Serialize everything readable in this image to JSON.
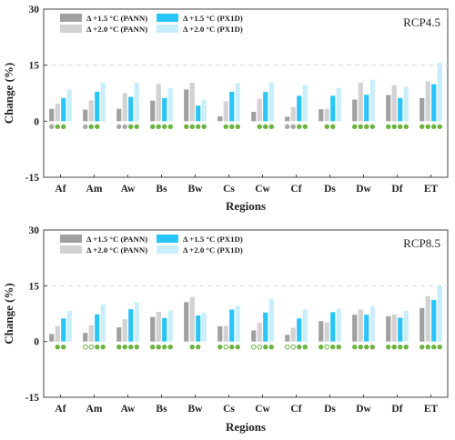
{
  "chart_data": [
    {
      "type": "bar",
      "scenario": "RCP4.5",
      "xlabel": "Regions",
      "ylabel": "Change (%)",
      "ylim": [
        -15,
        30
      ],
      "yticks": [
        -15,
        0,
        15,
        30
      ],
      "reference_line": 15,
      "categories": [
        "Af",
        "Am",
        "Aw",
        "Bs",
        "Bw",
        "Cs",
        "Cw",
        "Cf",
        "Ds",
        "Dw",
        "Df",
        "ET"
      ],
      "series": [
        {
          "name": "Δ +1.5 °C (PANN)",
          "color": "#a0a0a0",
          "values": [
            3.3,
            3.1,
            3.3,
            5.5,
            8.5,
            1.3,
            2.5,
            1.2,
            3.2,
            5.8,
            7.0,
            6.2
          ]
        },
        {
          "name": "Δ +2.0 °C (PANN)",
          "color": "#d2d2d2",
          "values": [
            4.7,
            5.6,
            7.5,
            10.0,
            10.3,
            5.3,
            6.0,
            3.8,
            3.3,
            10.3,
            9.6,
            10.7
          ]
        },
        {
          "name": "Δ +1.5 °C (PX1D)",
          "color": "#29c5f6",
          "values": [
            6.2,
            7.9,
            6.5,
            6.2,
            4.2,
            7.9,
            7.8,
            6.8,
            6.8,
            7.1,
            6.2,
            9.9
          ]
        },
        {
          "name": "Δ +2.0 °C (PX1D)",
          "color": "#c8eefc",
          "values": [
            8.5,
            10.3,
            10.3,
            8.8,
            5.8,
            10.2,
            10.3,
            9.7,
            8.9,
            11.1,
            9.2,
            15.7
          ]
        }
      ],
      "markers": [
        [
          "gray",
          "green",
          "green",
          null
        ],
        [
          "gray",
          "green",
          "green",
          null
        ],
        [
          "gray",
          "gray",
          "green",
          "green"
        ],
        [
          "green",
          "green",
          "green",
          "green"
        ],
        [
          "green",
          "green",
          "green",
          "green"
        ],
        [
          null,
          "green",
          "green",
          "green"
        ],
        [
          null,
          "green",
          "green",
          "green"
        ],
        [
          "gray",
          "gray",
          "green",
          "green"
        ],
        [
          null,
          "green",
          "green",
          null
        ],
        [
          "green",
          "green",
          "green",
          "green"
        ],
        [
          "green",
          "green",
          "green",
          "green"
        ],
        [
          "green",
          "green",
          "green",
          "green"
        ]
      ]
    },
    {
      "type": "bar",
      "scenario": "RCP8.5",
      "xlabel": "Regions",
      "ylabel": "Change (%)",
      "ylim": [
        -15,
        30
      ],
      "yticks": [
        -15,
        0,
        15,
        30
      ],
      "reference_line": 15,
      "categories": [
        "Af",
        "Am",
        "Aw",
        "Bs",
        "Bw",
        "Cs",
        "Cw",
        "Cf",
        "Ds",
        "Dw",
        "Df",
        "ET"
      ],
      "series": [
        {
          "name": "Δ +1.5 °C (PANN)",
          "color": "#a0a0a0",
          "values": [
            2.0,
            2.3,
            3.8,
            6.6,
            10.6,
            4.1,
            3.0,
            1.8,
            5.5,
            7.2,
            6.8,
            9.0
          ]
        },
        {
          "name": "Δ +2.0 °C (PANN)",
          "color": "#d2d2d2",
          "values": [
            4.2,
            4.3,
            6.0,
            8.0,
            12.0,
            4.2,
            5.0,
            3.7,
            5.1,
            8.6,
            7.3,
            12.2
          ]
        },
        {
          "name": "Δ +1.5 °C (PX1D)",
          "color": "#29c5f6",
          "values": [
            6.2,
            7.3,
            8.7,
            6.3,
            7.0,
            8.6,
            7.8,
            6.2,
            7.9,
            7.2,
            6.4,
            11.2
          ]
        },
        {
          "name": "Δ +2.0 °C (PX1D)",
          "color": "#c8eefc",
          "values": [
            8.3,
            10.0,
            10.5,
            8.4,
            7.7,
            9.6,
            11.4,
            8.6,
            8.8,
            9.5,
            8.3,
            14.9
          ]
        }
      ],
      "markers": [
        [
          null,
          "green",
          "green",
          null
        ],
        [
          "open",
          "open",
          "green",
          "green"
        ],
        [
          "green",
          "green",
          "green",
          "green"
        ],
        [
          "green",
          "green",
          "green",
          "green"
        ],
        [
          null,
          "green",
          "green",
          null
        ],
        [
          "green",
          "open",
          "green",
          "green"
        ],
        [
          "open",
          "open",
          "green",
          "green"
        ],
        [
          "open",
          "open",
          "green",
          "green"
        ],
        [
          "green",
          "open",
          "green",
          "green"
        ],
        [
          "green",
          "green",
          "green",
          "green"
        ],
        [
          "green",
          "green",
          "green",
          "green"
        ],
        [
          "green",
          "green",
          "green",
          "green"
        ]
      ]
    }
  ]
}
